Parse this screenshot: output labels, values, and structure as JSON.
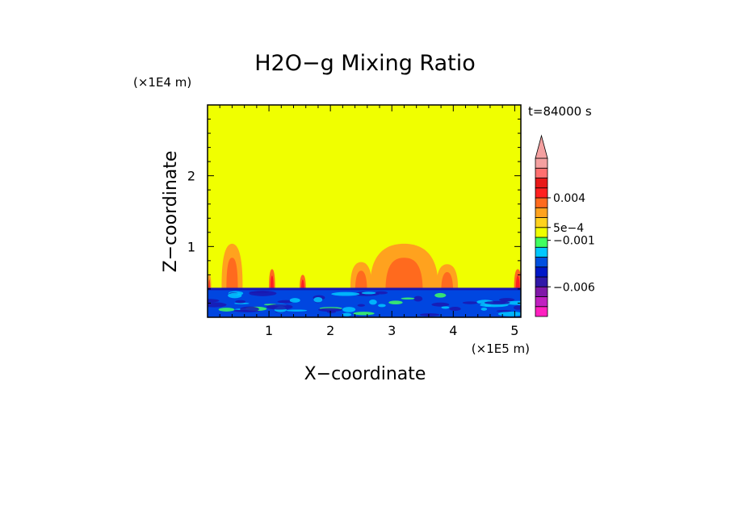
{
  "chart_data": {
    "type": "heatmap",
    "title": "H2O−g Mixing Ratio",
    "xlabel": "X−coordinate",
    "ylabel": "Z−coordinate",
    "x_scale_label": "(×1E5 m)",
    "y_scale_label": "(×1E4 m)",
    "time_label": "t=84000 s",
    "xlim": [
      0,
      5.1
    ],
    "ylim": [
      0,
      3.0
    ],
    "x_ticks": [
      {
        "value": 1,
        "label": "1"
      },
      {
        "value": 2,
        "label": "2"
      },
      {
        "value": 3,
        "label": "3"
      },
      {
        "value": 4,
        "label": "4"
      },
      {
        "value": 5,
        "label": "5"
      }
    ],
    "y_ticks": [
      {
        "value": 1,
        "label": "1"
      },
      {
        "value": 2,
        "label": "2"
      }
    ],
    "field": {
      "background_color": "#f0ff00",
      "boundary_layer_top": 0.4,
      "boundary_layer_color": "#0046e0",
      "boundary_layer_dark_color": "#1a18b0",
      "boundary_layer_light_color": "#00c8ff",
      "boundary_layer_green_color": "#40ff60",
      "plumes": [
        {
          "x": 0.03,
          "top": 0.6,
          "width": 0.06,
          "outer": "#ff9a2a",
          "inner": "#ff3b1e"
        },
        {
          "x": 0.4,
          "top": 1.04,
          "width": 0.34,
          "outer": "#ffa21e",
          "inner": "#ff6a1e"
        },
        {
          "x": 1.05,
          "top": 0.68,
          "width": 0.1,
          "outer": "#ff6a1e",
          "inner": "#ff2020"
        },
        {
          "x": 1.55,
          "top": 0.6,
          "width": 0.1,
          "outer": "#ff6a1e",
          "inner": "#ff2020"
        },
        {
          "x": 2.5,
          "top": 0.78,
          "width": 0.35,
          "outer": "#ffa21e",
          "inner": "#ff6a1e"
        },
        {
          "x": 3.2,
          "top": 1.04,
          "width": 1.1,
          "outer": "#ffa21e",
          "inner": "#ff6a1e"
        },
        {
          "x": 3.9,
          "top": 0.75,
          "width": 0.35,
          "outer": "#ffa21e",
          "inner": "#ff6a1e"
        },
        {
          "x": 5.05,
          "top": 0.68,
          "width": 0.12,
          "outer": "#ff6a1e",
          "inner": "#ff2020"
        }
      ]
    },
    "colorbar": {
      "colors": [
        "#ff20c0",
        "#c020c0",
        "#8018a8",
        "#3018a8",
        "#0018c8",
        "#0050e0",
        "#00c8ff",
        "#40ff60",
        "#f0ff00",
        "#ffd21e",
        "#ffa21e",
        "#ff6a1e",
        "#ff2020",
        "#e81818",
        "#ff7070",
        "#f4a0a0"
      ],
      "extend_color": "#f4a0a0",
      "labels": [
        {
          "value": 0.004,
          "label": "0.004",
          "level": 12
        },
        {
          "value": 0.0005,
          "label": "5e−4",
          "level": 9
        },
        {
          "value": -0.001,
          "label": "−0.001",
          "level": 7.7
        },
        {
          "value": -0.006,
          "label": "−0.006",
          "level": 3
        }
      ]
    }
  }
}
